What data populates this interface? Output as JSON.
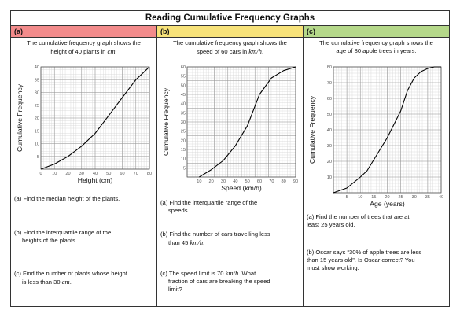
{
  "title": "Reading Cumulative Frequency Graphs",
  "panels": [
    {
      "label": "(a)",
      "intro": [
        "The cumulative frequency graph shows the",
        "height of 40 plants in ",
        "cm",
        "."
      ],
      "questions": [
        [
          "(a) Find the median height of the plants."
        ],
        [
          "(b) Find the interquartile range of the",
          "heights of the plants."
        ],
        [
          "(c) Find the number of plants whose height",
          "is less than 30 "
        ]
      ],
      "q_units": [
        "cm",
        "."
      ],
      "chart_data": {
        "type": "line",
        "title": "",
        "xlabel": "Height (cm)",
        "ylabel": "Cumulative Frequency",
        "xlim": [
          0,
          80
        ],
        "ylim": [
          0,
          40
        ],
        "x_ticks": [
          0,
          10,
          20,
          30,
          40,
          50,
          60,
          70,
          80
        ],
        "y_ticks": [
          5,
          10,
          15,
          20,
          25,
          30,
          35,
          40
        ],
        "grid": true,
        "series": [
          {
            "x": [
              0,
              10,
              20,
              30,
              40,
              50,
              60,
              70,
              80
            ],
            "y": [
              0,
              2,
              5,
              9,
              14,
              21,
              28,
              35,
              40
            ]
          }
        ]
      }
    },
    {
      "label": "(b)",
      "intro": [
        "The cumulative frequency graph shows the",
        "speed of 60 cars in ",
        "km/h",
        "."
      ],
      "questions": [
        [
          "(a) Find the interquartile range of the",
          "speeds."
        ],
        [
          "(b) Find the number of cars travelling less",
          "than 45 "
        ],
        [
          "(c) The speed limit is 70 ",
          ". What",
          "fraction of cars are breaking the speed",
          "limit?"
        ]
      ],
      "q_units": [
        "km/h",
        "."
      ],
      "chart_data": {
        "type": "line",
        "title": "",
        "xlabel": "Speed (km/h)",
        "ylabel": "Cumulative Frequency",
        "xlim": [
          0,
          90
        ],
        "ylim": [
          0,
          60
        ],
        "x_ticks": [
          10,
          20,
          30,
          40,
          50,
          60,
          70,
          80,
          90
        ],
        "y_ticks": [
          5,
          10,
          15,
          20,
          25,
          30,
          35,
          40,
          45,
          50,
          55,
          60
        ],
        "grid": true,
        "series": [
          {
            "x": [
              10,
              20,
              30,
              40,
              50,
              60,
              70,
              80,
              90
            ],
            "y": [
              0,
              4,
              9,
              17,
              28,
              45,
              54,
              58,
              60
            ]
          }
        ]
      }
    },
    {
      "label": "(c)",
      "intro": [
        "The cumulative frequency graph shows the",
        "age of 80 apple trees in years."
      ],
      "questions": [
        [
          "(a) Find the number of trees that are at",
          "least 25 years old."
        ],
        [
          "(b) Oscar says “30% of apple trees are less",
          "than 15 years old”. Is Oscar correct? You",
          "must show working."
        ]
      ],
      "chart_data": {
        "type": "line",
        "title": "",
        "xlabel": "Age (years)",
        "ylabel": "Cumulative Frequency",
        "xlim": [
          0,
          40
        ],
        "ylim": [
          0,
          80
        ],
        "x_ticks": [
          5,
          10,
          15,
          20,
          25,
          30,
          35,
          40
        ],
        "y_ticks": [
          10,
          20,
          30,
          40,
          50,
          60,
          70,
          80
        ],
        "grid": true,
        "series": [
          {
            "x": [
              0,
              5,
              10,
              12.5,
              15,
              20,
              25,
              27.5,
              30,
              32.5,
              35,
              37.5,
              40
            ],
            "y": [
              0,
              3,
              10,
              14,
              21,
              35,
              52,
              65,
              73,
              77,
              79,
              80,
              80
            ]
          }
        ]
      }
    }
  ]
}
